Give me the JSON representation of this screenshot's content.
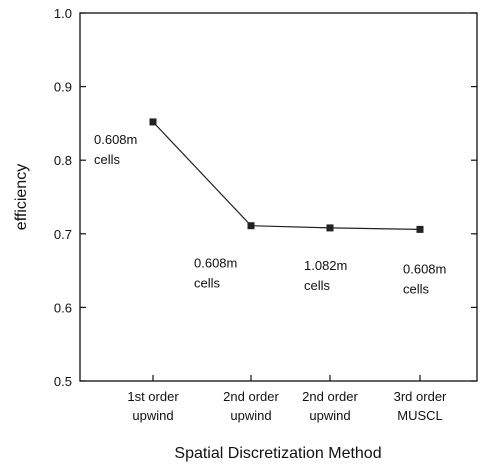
{
  "chart_data": {
    "type": "line",
    "xlabel": "Spatial Discretization Method",
    "ylabel": "efficiency",
    "ylim": [
      0.5,
      1.0
    ],
    "yticks": [
      "0.5",
      "0.6",
      "0.7",
      "0.8",
      "0.9",
      "1.0"
    ],
    "categories": [
      [
        "1st order",
        "upwind"
      ],
      [
        "2nd order",
        "upwind"
      ],
      [
        "2nd order",
        "upwind"
      ],
      [
        "3rd order",
        "MUSCL"
      ]
    ],
    "values": [
      0.852,
      0.711,
      0.708,
      0.706
    ],
    "point_labels": [
      [
        "0.608m",
        "cells"
      ],
      [
        "0.608m",
        "cells"
      ],
      [
        "1.082m",
        "cells"
      ],
      [
        "0.608m",
        "cells"
      ]
    ],
    "grid": false,
    "legend": "none",
    "colors": {
      "line": "#222222",
      "marker": "#222222",
      "frame": "#111111"
    }
  }
}
